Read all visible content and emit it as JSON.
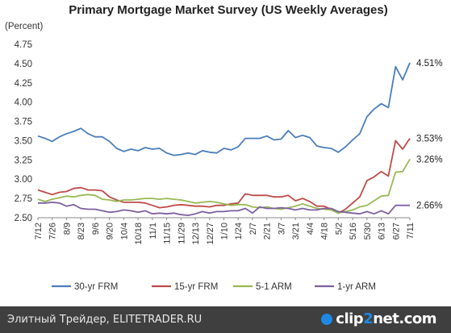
{
  "chart_data": {
    "type": "line",
    "title": "Primary Mortgage Market Survey (US Weekly Averages)",
    "ylabel": "(Percent)",
    "ylim": [
      2.5,
      4.75
    ],
    "yticks": [
      "4.75",
      "4.50",
      "4.25",
      "4.00",
      "3.75",
      "3.50",
      "3.25",
      "3.00",
      "2.75",
      "2.50"
    ],
    "ytick_values": [
      4.75,
      4.5,
      4.25,
      4.0,
      3.75,
      3.5,
      3.25,
      3.0,
      2.75,
      2.5
    ],
    "x": [
      "7/12",
      "7/19",
      "7/26",
      "8/2",
      "8/9",
      "8/16",
      "8/23",
      "8/30",
      "9/6",
      "9/13",
      "9/20",
      "9/27",
      "10/4",
      "10/11",
      "10/18",
      "10/25",
      "11/1",
      "11/8",
      "11/15",
      "11/22",
      "11/29",
      "12/6",
      "12/13",
      "12/20",
      "12/27",
      "1/3",
      "1/10",
      "1/17",
      "1/24",
      "1/31",
      "2/7",
      "2/14",
      "2/21",
      "2/28",
      "3/7",
      "3/14",
      "3/21",
      "3/28",
      "4/4",
      "4/11",
      "4/18",
      "4/25",
      "5/2",
      "5/9",
      "5/16",
      "5/23",
      "5/30",
      "6/6",
      "6/13",
      "6/20",
      "6/27",
      "7/4",
      "7/11"
    ],
    "xtick_labels": [
      "7/12",
      "7/26",
      "8/9",
      "8/23",
      "9/6",
      "9/20",
      "10/4",
      "10/18",
      "11/1",
      "11/15",
      "11/29",
      "12/13",
      "12/27",
      "1/10",
      "1/24",
      "2/7",
      "2/21",
      "3/7",
      "3/21",
      "4/4",
      "4/18",
      "5/2",
      "5/16",
      "5/30",
      "6/13",
      "6/27",
      "7/11"
    ],
    "series": [
      {
        "name": "30-yr FRM",
        "color": "#4a7ebb",
        "values": [
          3.56,
          3.53,
          3.49,
          3.55,
          3.59,
          3.62,
          3.66,
          3.59,
          3.55,
          3.55,
          3.49,
          3.4,
          3.36,
          3.39,
          3.37,
          3.41,
          3.39,
          3.4,
          3.34,
          3.31,
          3.32,
          3.34,
          3.32,
          3.37,
          3.35,
          3.34,
          3.4,
          3.38,
          3.42,
          3.53,
          3.53,
          3.53,
          3.56,
          3.51,
          3.52,
          3.63,
          3.54,
          3.57,
          3.54,
          3.43,
          3.41,
          3.4,
          3.35,
          3.42,
          3.51,
          3.59,
          3.81,
          3.91,
          3.98,
          3.93,
          4.46,
          4.29,
          4.51
        ]
      },
      {
        "name": "15-yr FRM",
        "color": "#be4b48",
        "values": [
          2.86,
          2.83,
          2.8,
          2.83,
          2.84,
          2.88,
          2.89,
          2.86,
          2.86,
          2.85,
          2.77,
          2.73,
          2.7,
          2.7,
          2.7,
          2.69,
          2.66,
          2.63,
          2.64,
          2.66,
          2.67,
          2.66,
          2.65,
          2.65,
          2.64,
          2.66,
          2.66,
          2.68,
          2.69,
          2.81,
          2.79,
          2.79,
          2.79,
          2.77,
          2.77,
          2.79,
          2.72,
          2.75,
          2.71,
          2.65,
          2.65,
          2.61,
          2.56,
          2.61,
          2.69,
          2.77,
          2.98,
          3.03,
          3.1,
          3.04,
          3.5,
          3.39,
          3.53
        ]
      },
      {
        "name": "5-1 ARM",
        "color": "#98b954",
        "values": [
          2.74,
          2.71,
          2.74,
          2.76,
          2.78,
          2.77,
          2.79,
          2.8,
          2.79,
          2.74,
          2.73,
          2.71,
          2.73,
          2.73,
          2.74,
          2.75,
          2.75,
          2.74,
          2.75,
          2.74,
          2.73,
          2.71,
          2.69,
          2.7,
          2.71,
          2.7,
          2.68,
          2.66,
          2.67,
          2.67,
          2.64,
          2.63,
          2.64,
          2.62,
          2.61,
          2.63,
          2.65,
          2.68,
          2.65,
          2.62,
          2.61,
          2.6,
          2.56,
          2.58,
          2.6,
          2.64,
          2.66,
          2.72,
          2.78,
          2.79,
          3.09,
          3.1,
          3.26
        ]
      },
      {
        "name": "1-yr ARM",
        "color": "#7d60a0",
        "values": [
          2.69,
          2.69,
          2.7,
          2.69,
          2.65,
          2.67,
          2.62,
          2.61,
          2.61,
          2.59,
          2.57,
          2.58,
          2.6,
          2.59,
          2.57,
          2.59,
          2.55,
          2.56,
          2.55,
          2.56,
          2.54,
          2.53,
          2.55,
          2.58,
          2.56,
          2.58,
          2.58,
          2.59,
          2.59,
          2.62,
          2.56,
          2.64,
          2.62,
          2.62,
          2.63,
          2.62,
          2.6,
          2.62,
          2.6,
          2.6,
          2.62,
          2.62,
          2.58,
          2.57,
          2.56,
          2.55,
          2.58,
          2.55,
          2.59,
          2.55,
          2.66,
          2.66,
          2.66
        ]
      }
    ],
    "end_labels": [
      "4.51%",
      "3.53%",
      "3.26%",
      "2.66%"
    ],
    "legend_position": "bottom",
    "grid": false
  },
  "footer": {
    "text": "Элитный Трейдер, ELITETRADER.RU",
    "logo_a": "clip",
    "logo_b": "2",
    "logo_c": "net",
    "logo_d": ".com"
  }
}
